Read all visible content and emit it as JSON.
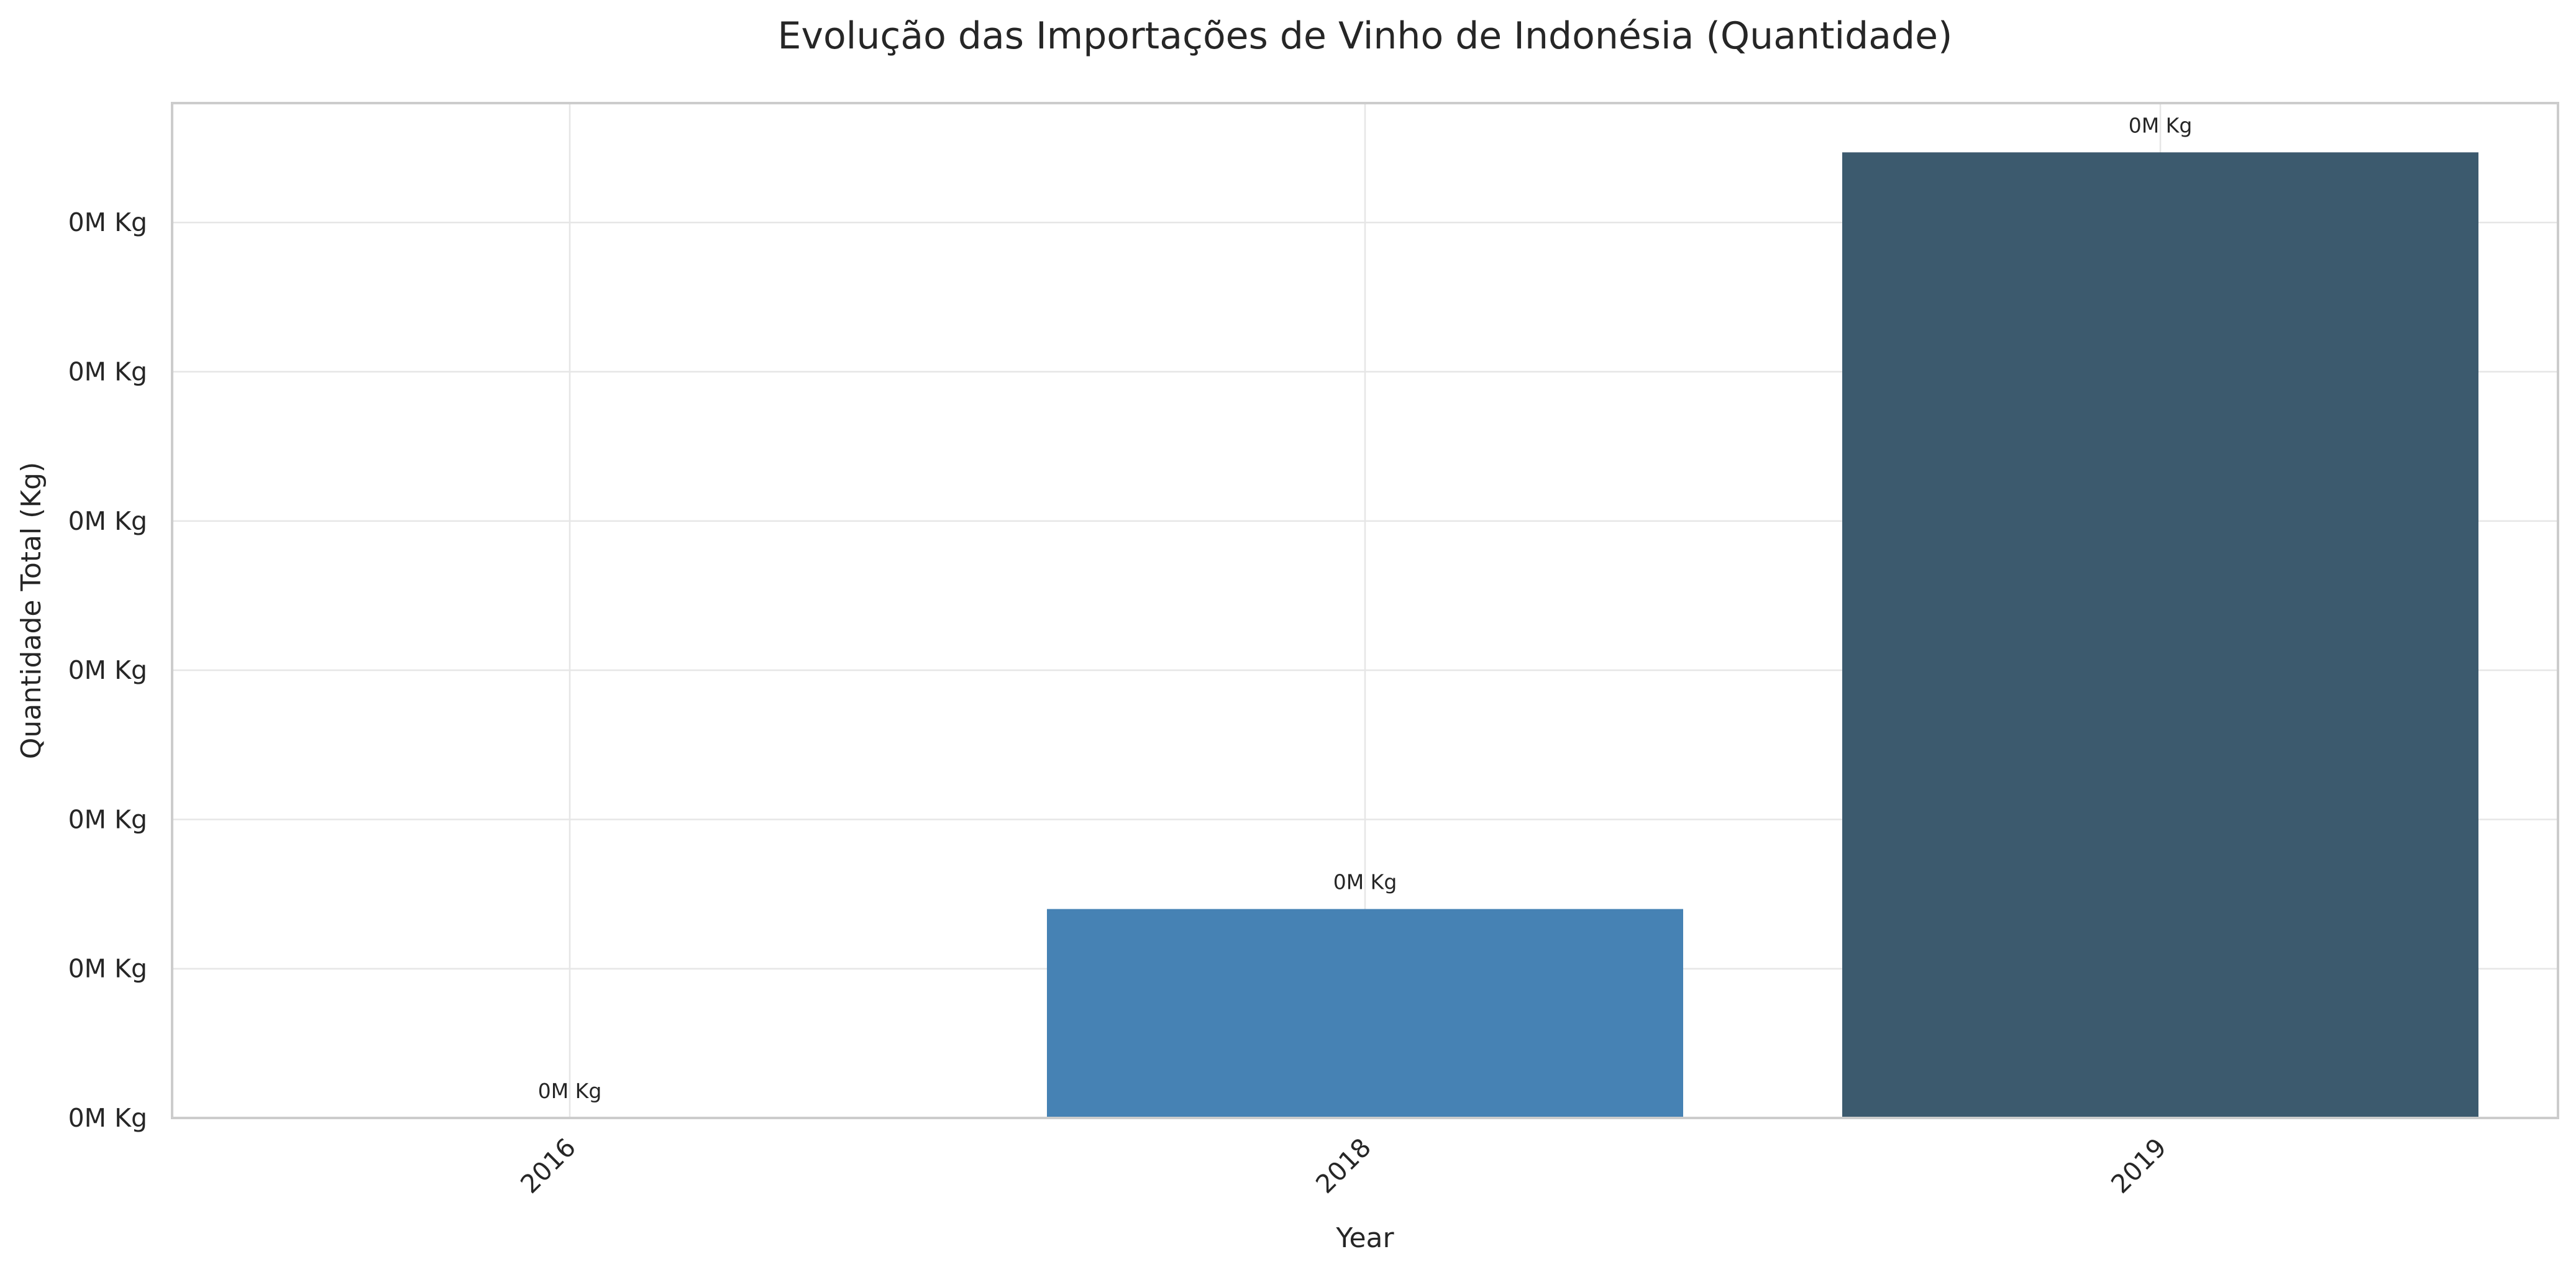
{
  "chart_data": {
    "type": "bar",
    "title": "Evolução das Importações de Vinho de Indonésia (Quantidade)",
    "xlabel": "Year",
    "ylabel": "Quantidade Total (Kg)",
    "categories": [
      "2016",
      "2018",
      "2019"
    ],
    "values": [
      0,
      140,
      647
    ],
    "value_labels": [
      "0M Kg",
      "0M Kg",
      "0M Kg"
    ],
    "colors": [
      "#4682b4",
      "#4682b4",
      "#3c5a6e"
    ],
    "yticks": [
      0,
      100,
      200,
      300,
      400,
      500,
      600
    ],
    "ytick_labels": [
      "0M Kg",
      "0M Kg",
      "0M Kg",
      "0M Kg",
      "0M Kg",
      "0M Kg",
      "0M Kg"
    ],
    "ylim": [
      0,
      680
    ],
    "grid": true,
    "xtick_rotation": -45
  }
}
